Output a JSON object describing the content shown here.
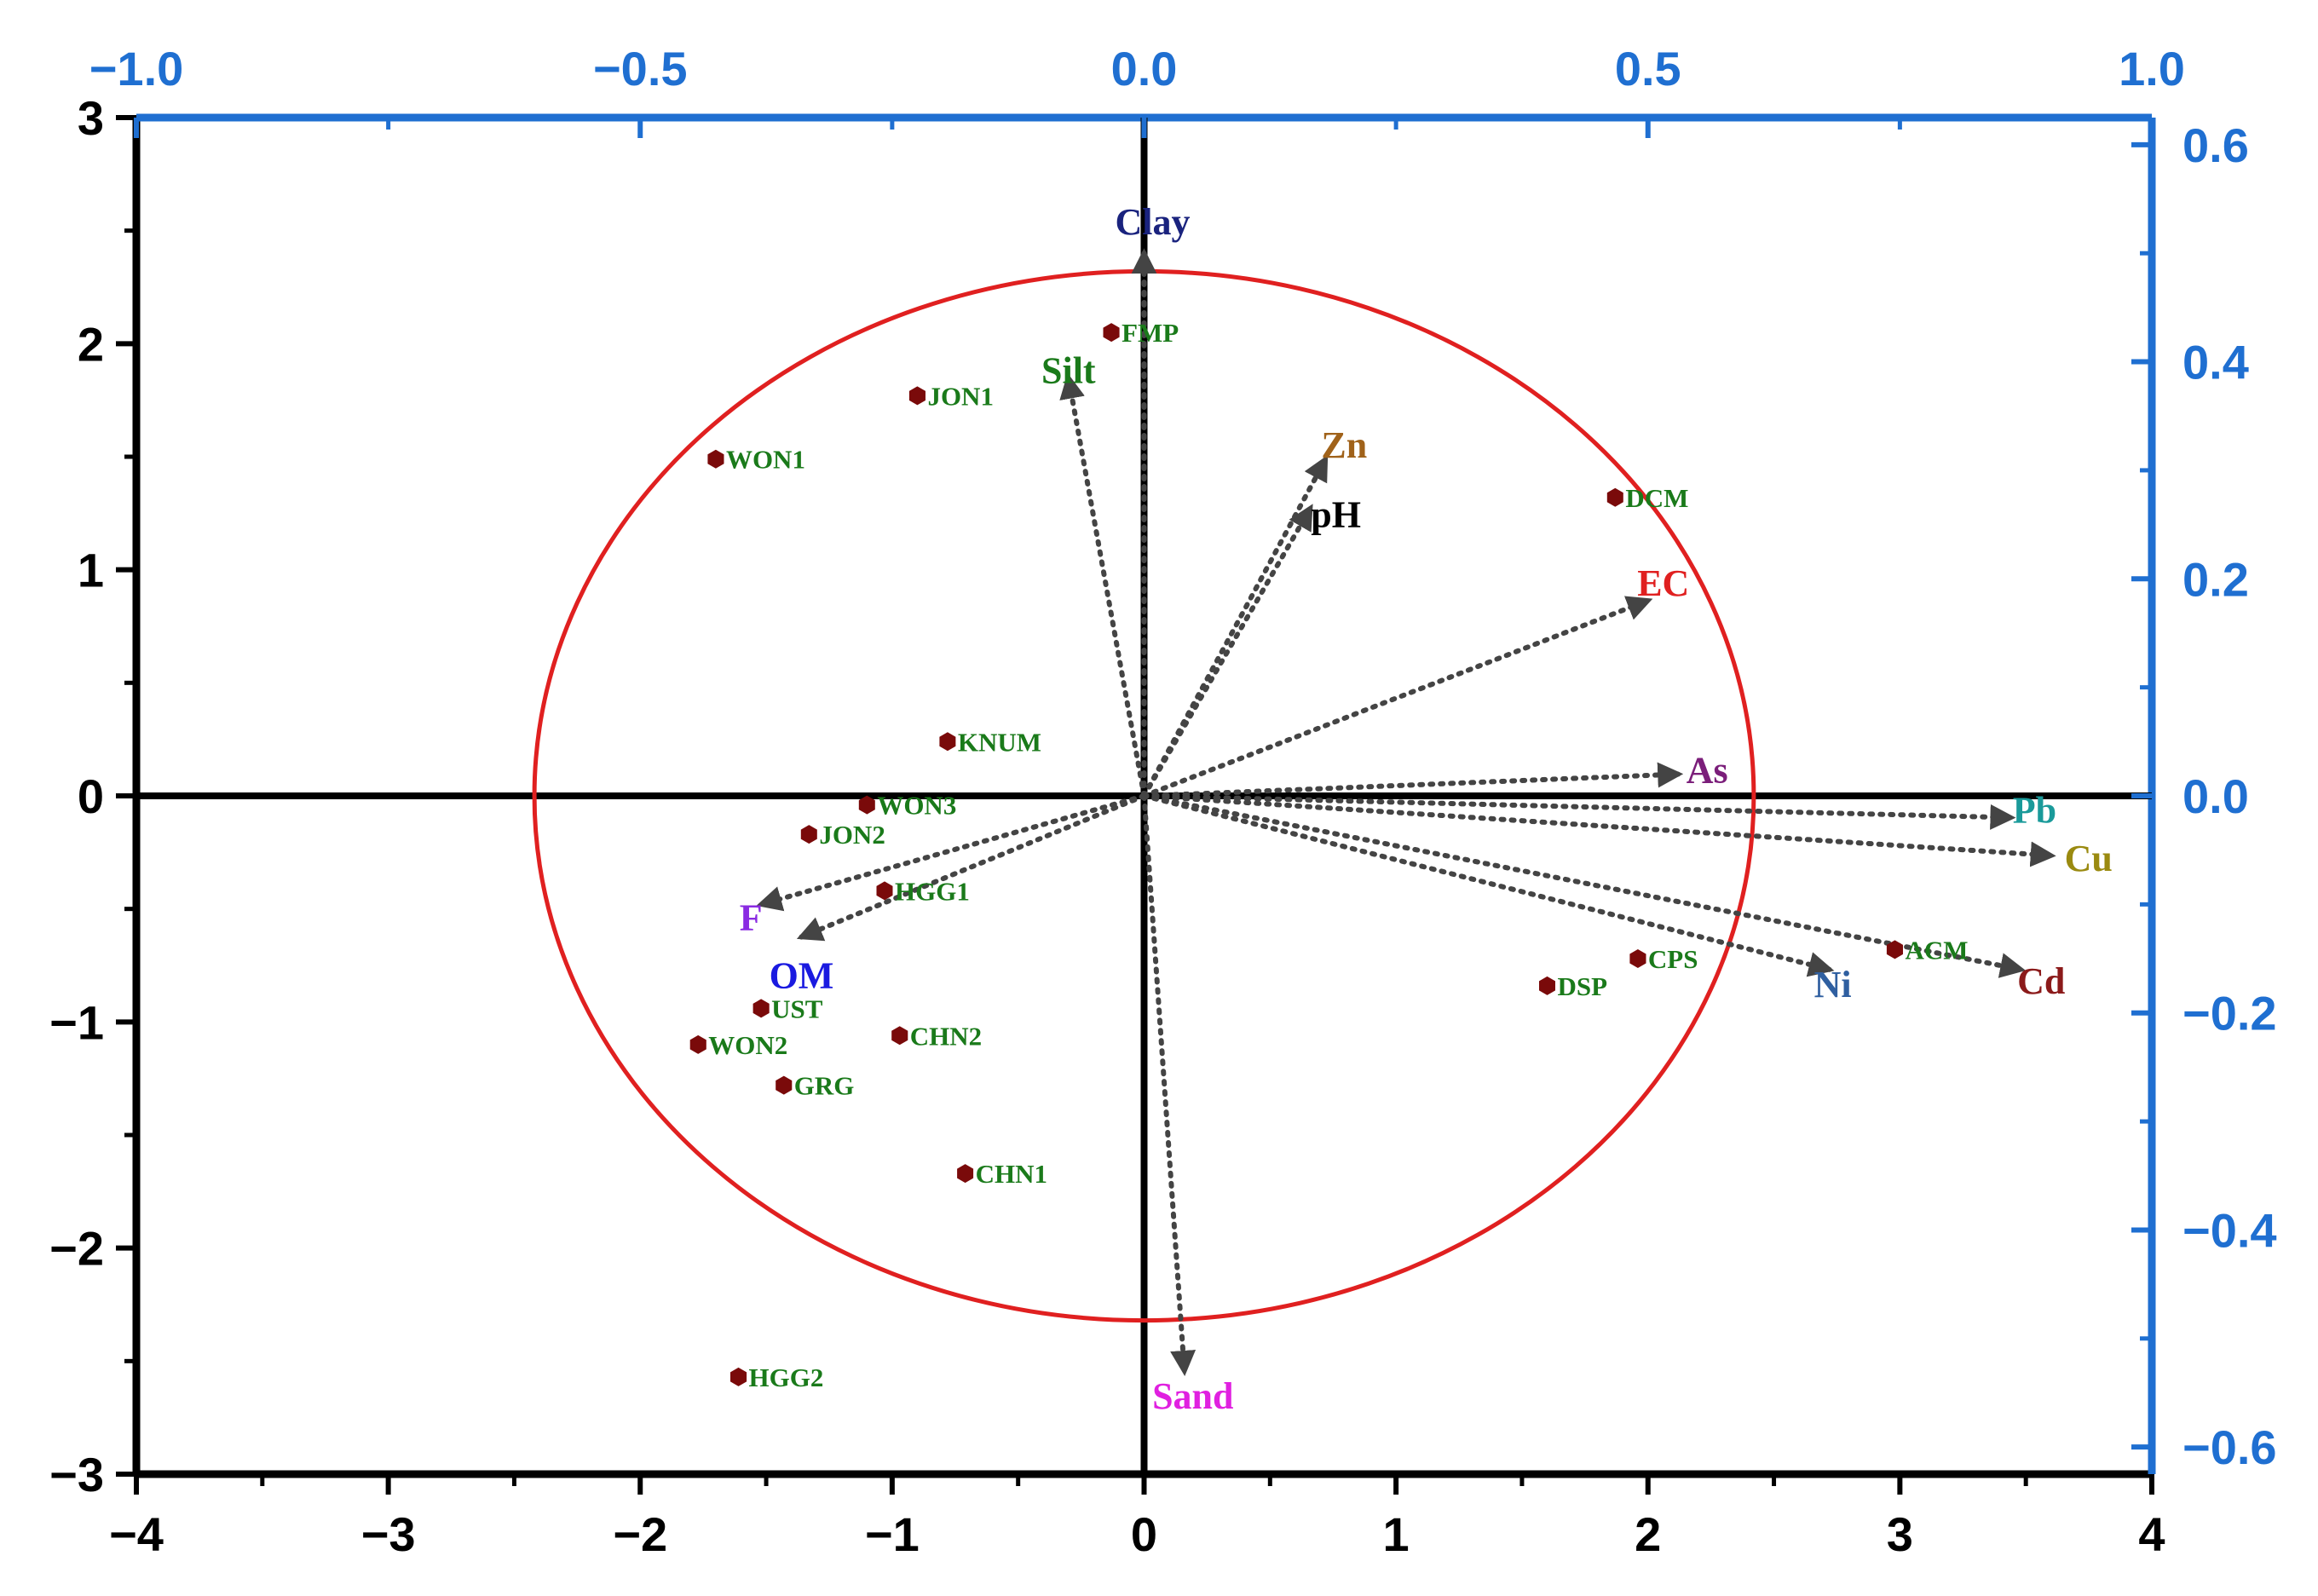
{
  "chart_data": {
    "type": "scatter",
    "title": "",
    "xlabel": "",
    "ylabel": "",
    "bottom_axis": {
      "range": [
        -4,
        4
      ],
      "ticks": [
        "−4",
        "−3",
        "−2",
        "−1",
        "0",
        "1",
        "2",
        "3",
        "4"
      ],
      "tick_values": [
        -4,
        -3,
        -2,
        -1,
        0,
        1,
        2,
        3,
        4
      ]
    },
    "left_axis": {
      "range": [
        -3,
        3
      ],
      "ticks": [
        "−3",
        "−2",
        "−1",
        "0",
        "1",
        "2",
        "3"
      ],
      "tick_values": [
        -3,
        -2,
        -1,
        0,
        1,
        2,
        3
      ]
    },
    "top_axis": {
      "range": [
        -1.0,
        1.0
      ],
      "ticks": [
        "−1.0",
        "−0.5",
        "0.0",
        "0.5",
        "1.0"
      ],
      "tick_values": [
        -1.0,
        -0.5,
        0.0,
        0.5,
        1.0
      ]
    },
    "right_axis": {
      "range": [
        -0.625,
        0.625
      ],
      "ticks": [
        "0.6",
        "0.4",
        "0.2",
        "0.0",
        "−0.2",
        "−0.4",
        "−0.6"
      ],
      "tick_values": [
        0.6,
        0.4,
        0.2,
        0.0,
        -0.2,
        -0.4,
        -0.6
      ]
    },
    "circle": {
      "center": [
        0,
        0
      ],
      "radius_x": 2.42,
      "radius_y": 2.32,
      "color": "#e02020"
    },
    "scores": [
      {
        "label": "FMP",
        "x": -0.13,
        "y": 2.05
      },
      {
        "label": "JON1",
        "x": -0.9,
        "y": 1.77
      },
      {
        "label": "WON1",
        "x": -1.7,
        "y": 1.49
      },
      {
        "label": "DCM",
        "x": 1.87,
        "y": 1.32
      },
      {
        "label": "KNUM",
        "x": -0.78,
        "y": 0.24
      },
      {
        "label": "WON3",
        "x": -1.1,
        "y": -0.04
      },
      {
        "label": "JON2",
        "x": -1.33,
        "y": -0.17
      },
      {
        "label": "HGG1",
        "x": -1.03,
        "y": -0.42
      },
      {
        "label": "ACM",
        "x": 2.98,
        "y": -0.68
      },
      {
        "label": "CPS",
        "x": 1.96,
        "y": -0.72
      },
      {
        "label": "DSP",
        "x": 1.6,
        "y": -0.84
      },
      {
        "label": "UST",
        "x": -1.52,
        "y": -0.94
      },
      {
        "label": "WON2",
        "x": -1.77,
        "y": -1.1
      },
      {
        "label": "CHN2",
        "x": -0.97,
        "y": -1.06
      },
      {
        "label": "GRG",
        "x": -1.43,
        "y": -1.28
      },
      {
        "label": "CHN1",
        "x": -0.71,
        "y": -1.67
      },
      {
        "label": "HGG2",
        "x": -1.61,
        "y": -2.57
      }
    ],
    "marker_color": "#7a0a0a",
    "loadings": [
      {
        "label": "Clay",
        "x": 0.0,
        "y": 0.5,
        "color": "#1a237e"
      },
      {
        "label": "Silt",
        "x": -0.075,
        "y": 0.385,
        "color": "#1a7a1a"
      },
      {
        "label": "Zn",
        "x": 0.18,
        "y": 0.31,
        "color": "#a0621a"
      },
      {
        "label": "pH",
        "x": 0.165,
        "y": 0.265,
        "color": "#000000"
      },
      {
        "label": "EC",
        "x": 0.5,
        "y": 0.18,
        "color": "#e02020"
      },
      {
        "label": "As",
        "x": 0.53,
        "y": 0.02,
        "color": "#7b1e7a"
      },
      {
        "label": "Pb",
        "x": 0.86,
        "y": -0.02,
        "color": "#1a9a9a"
      },
      {
        "label": "Cu",
        "x": 0.9,
        "y": -0.055,
        "color": "#9a8a10"
      },
      {
        "label": "Ni",
        "x": 0.68,
        "y": -0.16,
        "color": "#2f5fa0"
      },
      {
        "label": "Cd",
        "x": 0.87,
        "y": -0.16,
        "color": "#8b1a1a"
      },
      {
        "label": "F",
        "x": -0.38,
        "y": -0.1,
        "color": "#8a2be2"
      },
      {
        "label": "OM",
        "x": -0.34,
        "y": -0.13,
        "color": "#1a1ae0"
      },
      {
        "label": "Sand",
        "x": 0.04,
        "y": -0.53,
        "color": "#e020e0"
      }
    ]
  }
}
